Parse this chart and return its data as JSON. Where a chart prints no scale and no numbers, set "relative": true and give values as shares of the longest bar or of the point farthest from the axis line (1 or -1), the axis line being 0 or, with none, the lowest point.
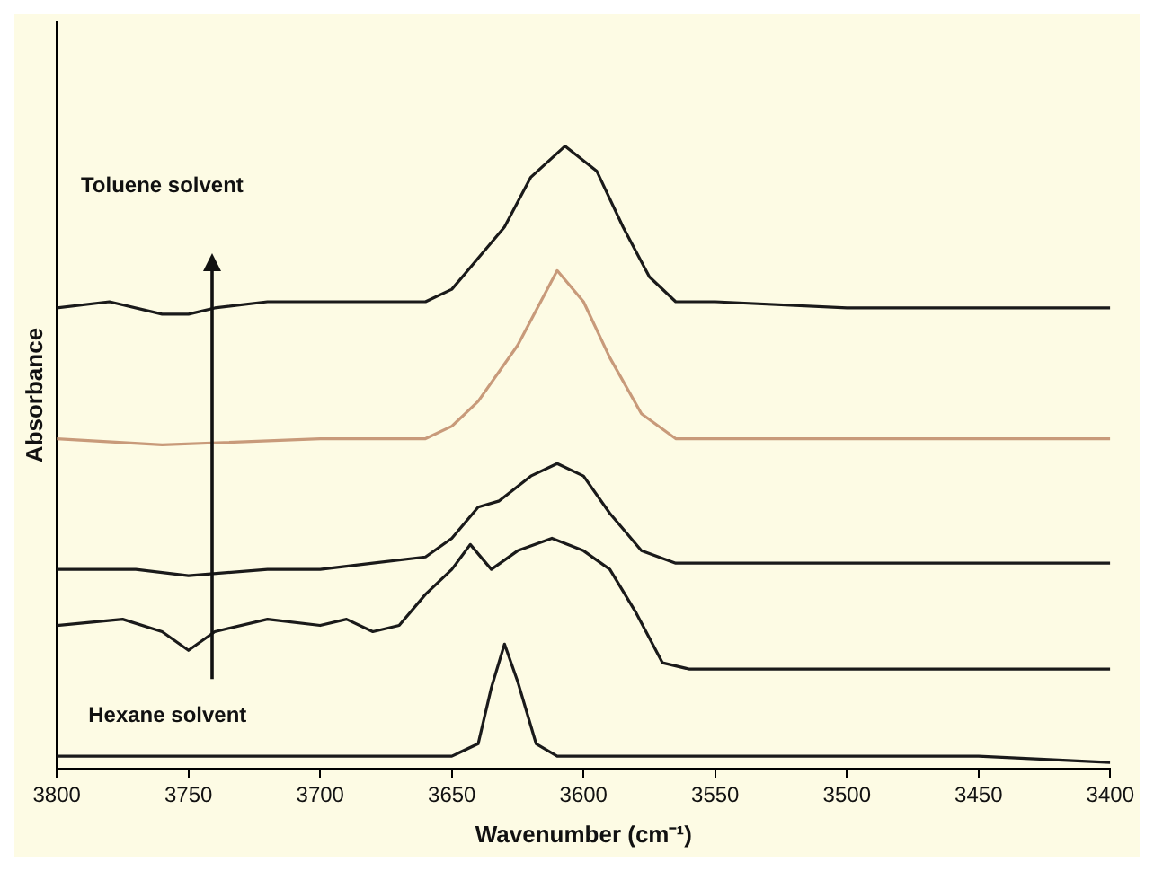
{
  "chart_data": {
    "type": "line",
    "relative": true,
    "xlabel": "Wavenumber (cm⁻¹)",
    "ylabel": "Absorbance",
    "xlim": [
      3800,
      3400
    ],
    "xticks": [
      3800,
      3750,
      3700,
      3650,
      3600,
      3550,
      3500,
      3450,
      3400
    ],
    "grid": false,
    "legend": false,
    "marker": "none",
    "line_style": "solid",
    "annotations": [
      "Toluene solvent",
      "Hexane solvent"
    ],
    "series": [
      {
        "color": "#1a1a1a",
        "x": [
          3800,
          3780,
          3760,
          3750,
          3740,
          3720,
          3700,
          3680,
          3660,
          3650,
          3640,
          3630,
          3620,
          3607,
          3595,
          3585,
          3575,
          3565,
          3550,
          3500,
          3450,
          3400
        ],
        "values": [
          0.74,
          0.75,
          0.73,
          0.73,
          0.74,
          0.75,
          0.75,
          0.75,
          0.75,
          0.77,
          0.82,
          0.87,
          0.95,
          1.0,
          0.96,
          0.87,
          0.79,
          0.75,
          0.75,
          0.74,
          0.74,
          0.74
        ]
      },
      {
        "color": "#c89a7a",
        "x": [
          3800,
          3760,
          3700,
          3660,
          3650,
          3640,
          3625,
          3610,
          3600,
          3590,
          3578,
          3565,
          3500,
          3400
        ],
        "values": [
          0.53,
          0.52,
          0.53,
          0.53,
          0.55,
          0.59,
          0.68,
          0.8,
          0.75,
          0.66,
          0.57,
          0.53,
          0.53,
          0.53
        ]
      },
      {
        "color": "#1a1a1a",
        "x": [
          3800,
          3770,
          3750,
          3720,
          3700,
          3680,
          3660,
          3650,
          3640,
          3632,
          3620,
          3610,
          3600,
          3590,
          3578,
          3565,
          3500,
          3400
        ],
        "values": [
          0.32,
          0.32,
          0.31,
          0.32,
          0.32,
          0.33,
          0.34,
          0.37,
          0.42,
          0.43,
          0.47,
          0.49,
          0.47,
          0.41,
          0.35,
          0.33,
          0.33,
          0.33
        ]
      },
      {
        "color": "#1a1a1a",
        "x": [
          3800,
          3775,
          3760,
          3750,
          3740,
          3720,
          3700,
          3690,
          3680,
          3670,
          3660,
          3650,
          3643,
          3635,
          3625,
          3612,
          3600,
          3590,
          3580,
          3570,
          3560,
          3500,
          3400
        ],
        "values": [
          0.23,
          0.24,
          0.22,
          0.19,
          0.22,
          0.24,
          0.23,
          0.24,
          0.22,
          0.23,
          0.28,
          0.32,
          0.36,
          0.32,
          0.35,
          0.37,
          0.35,
          0.32,
          0.25,
          0.17,
          0.16,
          0.16,
          0.16
        ]
      },
      {
        "color": "#1a1a1a",
        "x": [
          3800,
          3750,
          3700,
          3650,
          3640,
          3635,
          3630,
          3625,
          3618,
          3610,
          3550,
          3450,
          3400
        ],
        "values": [
          0.02,
          0.02,
          0.02,
          0.02,
          0.04,
          0.13,
          0.2,
          0.14,
          0.04,
          0.02,
          0.02,
          0.02,
          0.01
        ]
      }
    ]
  }
}
